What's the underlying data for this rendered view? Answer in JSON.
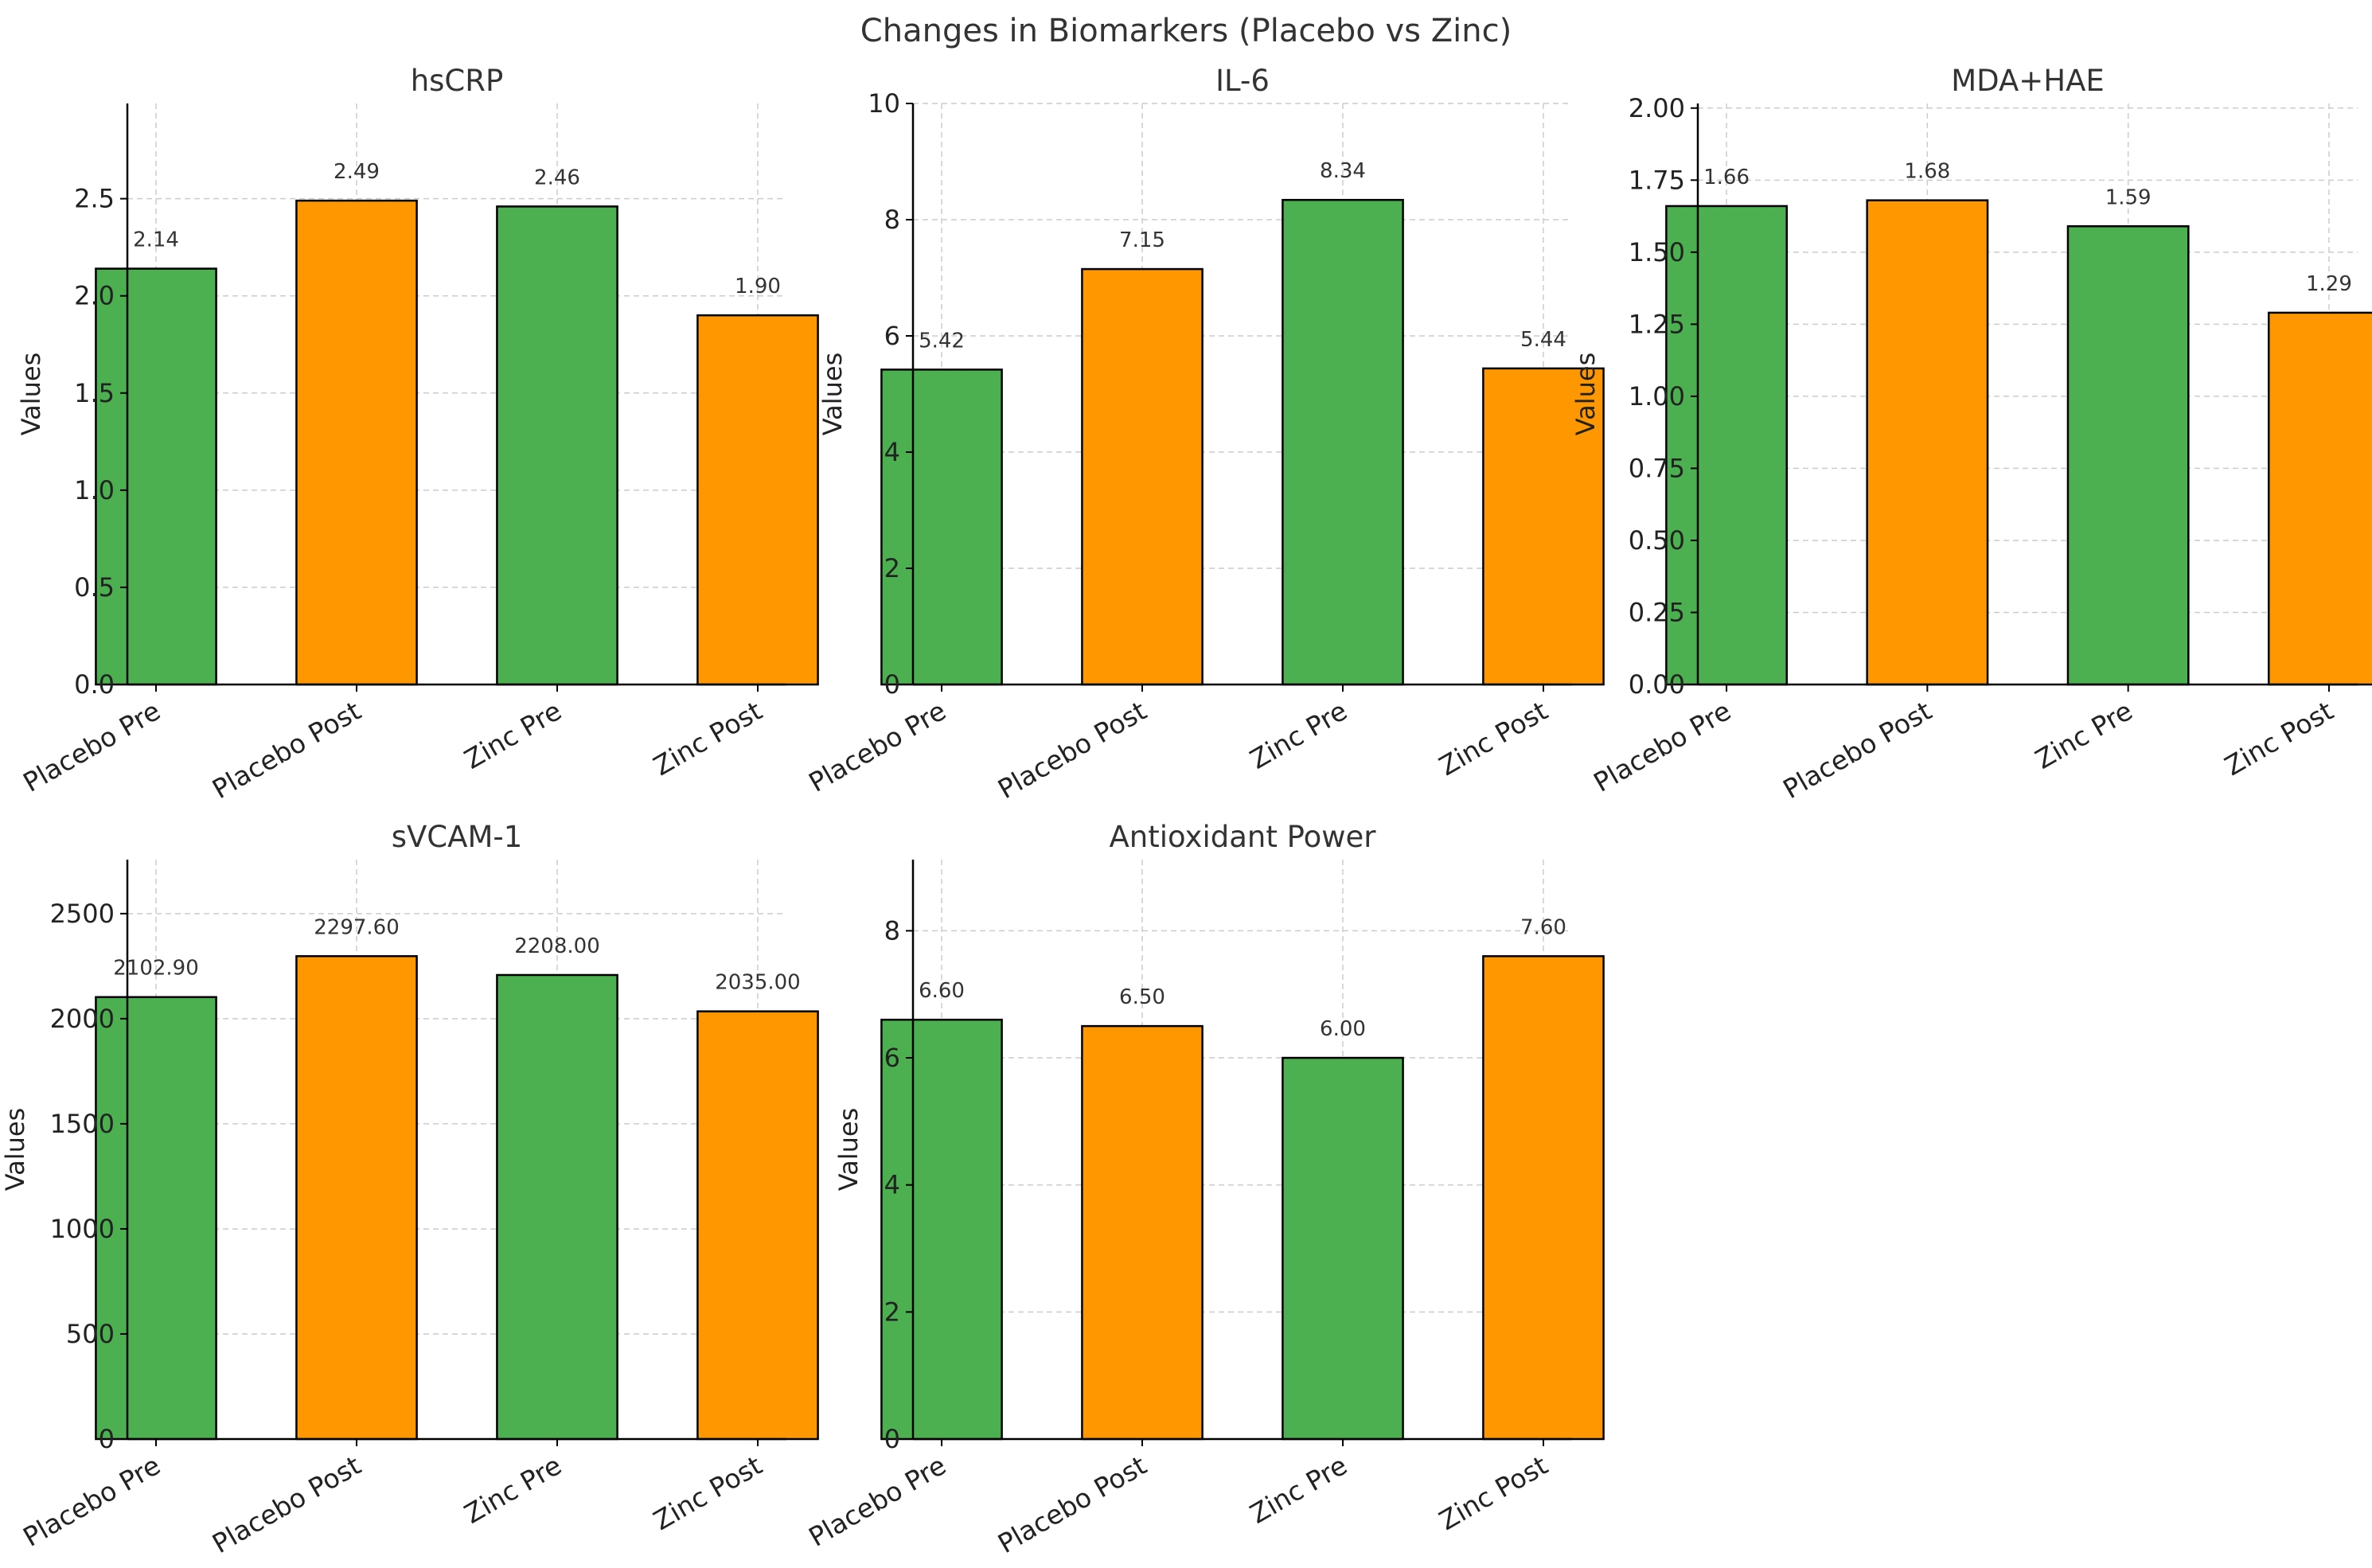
{
  "figure_title": "Changes in Biomarkers (Placebo vs Zinc)",
  "colors": {
    "pre": "#4caf50",
    "post": "#ff9800"
  },
  "chart_data": [
    {
      "type": "bar",
      "title": "hsCRP",
      "ylabel": "Values",
      "categories": [
        "Placebo Pre",
        "Placebo Post",
        "Zinc Pre",
        "Zinc Post"
      ],
      "values": [
        2.14,
        2.49,
        2.46,
        1.9
      ],
      "value_labels": [
        "2.14",
        "2.49",
        "2.46",
        "1.90"
      ],
      "ylim": [
        0,
        2.99
      ],
      "yticks": [
        0,
        0.5,
        1.0,
        1.5,
        2.0,
        2.5
      ],
      "ytick_labels": [
        "0.0",
        "0.5",
        "1.0",
        "1.5",
        "2.0",
        "2.5"
      ],
      "grid": true
    },
    {
      "type": "bar",
      "title": "IL-6",
      "ylabel": "Values",
      "categories": [
        "Placebo Pre",
        "Placebo Post",
        "Zinc Pre",
        "Zinc Post"
      ],
      "values": [
        5.42,
        7.15,
        8.34,
        5.44
      ],
      "value_labels": [
        "5.42",
        "7.15",
        "8.34",
        "5.44"
      ],
      "ylim": [
        0,
        10
      ],
      "yticks": [
        0,
        2,
        4,
        6,
        8,
        10
      ],
      "ytick_labels": [
        "0",
        "2",
        "4",
        "6",
        "8",
        "10"
      ],
      "grid": true
    },
    {
      "type": "bar",
      "title": "MDA+HAE",
      "ylabel": "Values",
      "categories": [
        "Placebo Pre",
        "Placebo Post",
        "Zinc Pre",
        "Zinc Post"
      ],
      "values": [
        1.66,
        1.68,
        1.59,
        1.29
      ],
      "value_labels": [
        "1.66",
        "1.68",
        "1.59",
        "1.29"
      ],
      "ylim": [
        0,
        2.016
      ],
      "yticks": [
        0,
        0.25,
        0.5,
        0.75,
        1.0,
        1.25,
        1.5,
        1.75,
        2.0
      ],
      "ytick_labels": [
        "0.00",
        "0.25",
        "0.50",
        "0.75",
        "1.00",
        "1.25",
        "1.50",
        "1.75",
        "2.00"
      ],
      "grid": true
    },
    {
      "type": "bar",
      "title": "sVCAM-1",
      "ylabel": "Values",
      "categories": [
        "Placebo Pre",
        "Placebo Post",
        "Zinc Pre",
        "Zinc Post"
      ],
      "values": [
        2102.9,
        2297.6,
        2208.0,
        2035.0
      ],
      "value_labels": [
        "2102.90",
        "2297.60",
        "2208.00",
        "2035.00"
      ],
      "ylim": [
        0,
        2757
      ],
      "yticks": [
        0,
        500,
        1000,
        1500,
        2000,
        2500
      ],
      "ytick_labels": [
        "0",
        "500",
        "1000",
        "1500",
        "2000",
        "2500"
      ],
      "grid": true
    },
    {
      "type": "bar",
      "title": "Antioxidant Power",
      "ylabel": "Values",
      "categories": [
        "Placebo Pre",
        "Placebo Post",
        "Zinc Pre",
        "Zinc Post"
      ],
      "values": [
        6.6,
        6.5,
        6.0,
        7.6
      ],
      "value_labels": [
        "6.60",
        "6.50",
        "6.00",
        "7.60"
      ],
      "ylim": [
        0,
        9.12
      ],
      "yticks": [
        0,
        2,
        4,
        6,
        8
      ],
      "ytick_labels": [
        "0",
        "2",
        "4",
        "6",
        "8"
      ],
      "grid": true
    }
  ]
}
